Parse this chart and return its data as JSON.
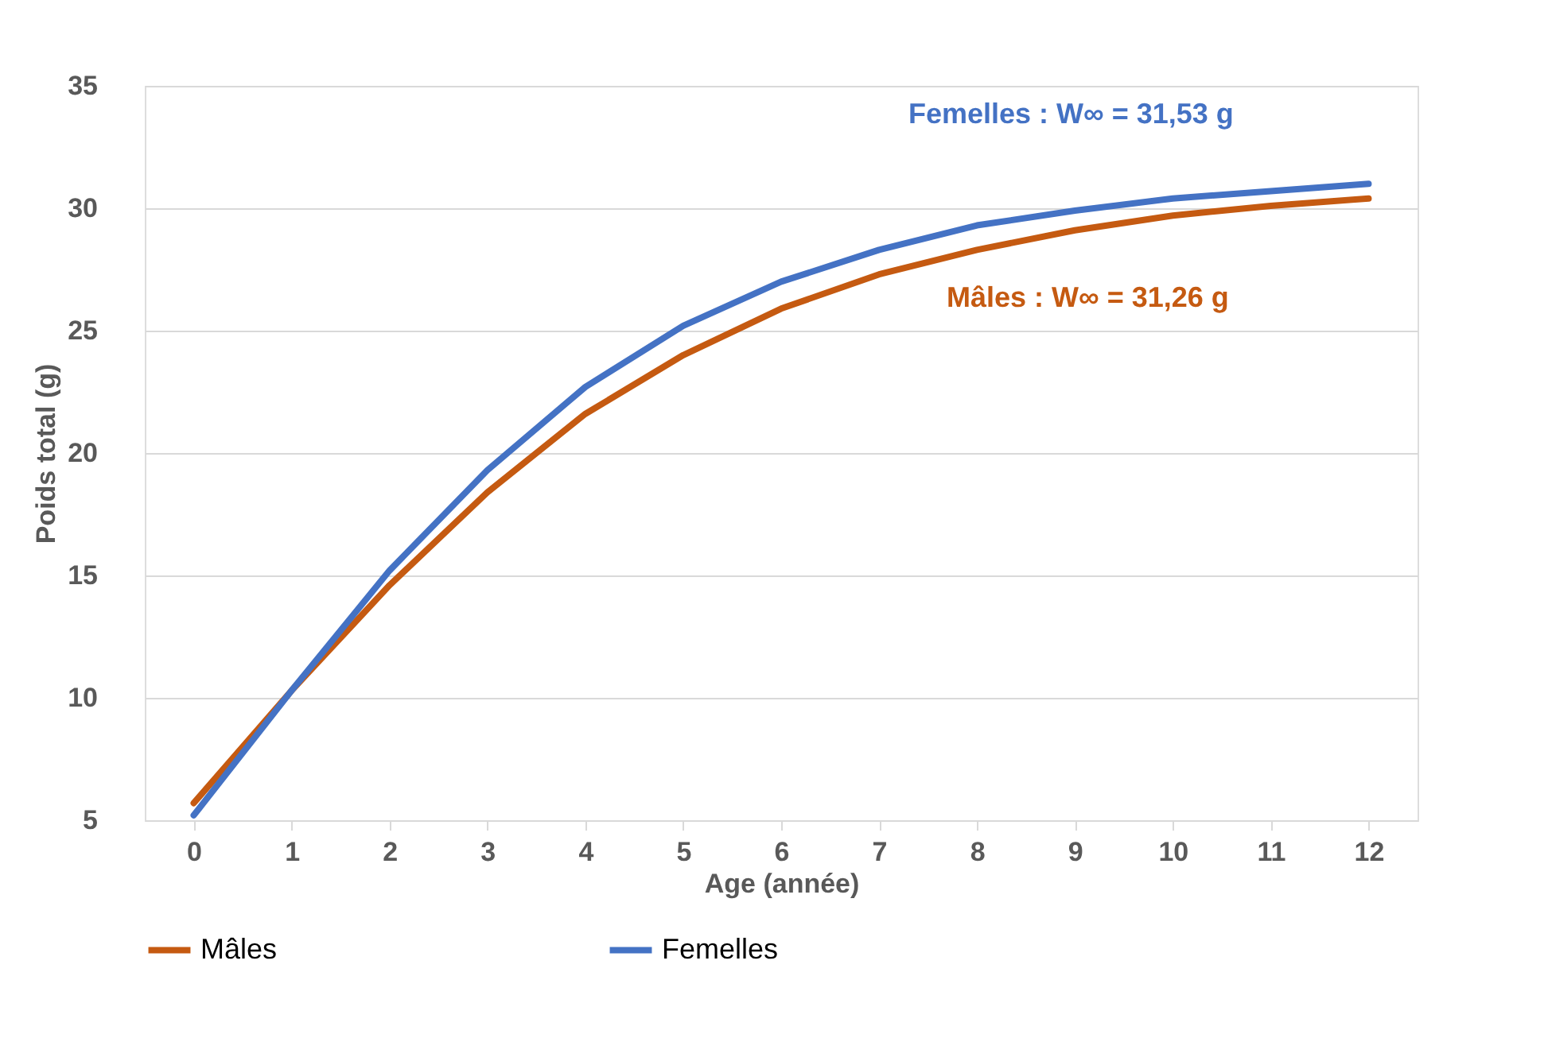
{
  "chart_data": {
    "type": "line",
    "xlabel": "Age (année)",
    "ylabel": "Poids total (g)",
    "x": [
      0,
      1,
      2,
      3,
      4,
      5,
      6,
      7,
      8,
      9,
      10,
      11,
      12
    ],
    "xlim": [
      -0.5,
      12.5
    ],
    "xticks": [
      0,
      1,
      2,
      3,
      4,
      5,
      6,
      7,
      8,
      9,
      10,
      11,
      12
    ],
    "series": [
      {
        "name": "Mâles",
        "color": "#c55a11",
        "values": [
          5.7,
          10.3,
          14.6,
          18.4,
          21.6,
          24.0,
          25.9,
          27.3,
          28.3,
          29.1,
          29.7,
          30.1,
          30.4
        ]
      },
      {
        "name": "Femelles",
        "color": "#4472c4",
        "values": [
          5.2,
          10.3,
          15.2,
          19.3,
          22.7,
          25.2,
          27.0,
          28.3,
          29.3,
          29.9,
          30.4,
          30.7,
          31.0
        ]
      }
    ],
    "annotations": [
      "Mâles : W∞ = 31,26 g",
      "Femelles : W∞ = 31,53 g"
    ],
    "ylim": [
      5,
      35
    ],
    "yticks": [
      5,
      10,
      15,
      20,
      25,
      30,
      35
    ],
    "grid": "y",
    "legend": "bottom",
    "marker": "none",
    "line_style": "solid"
  }
}
